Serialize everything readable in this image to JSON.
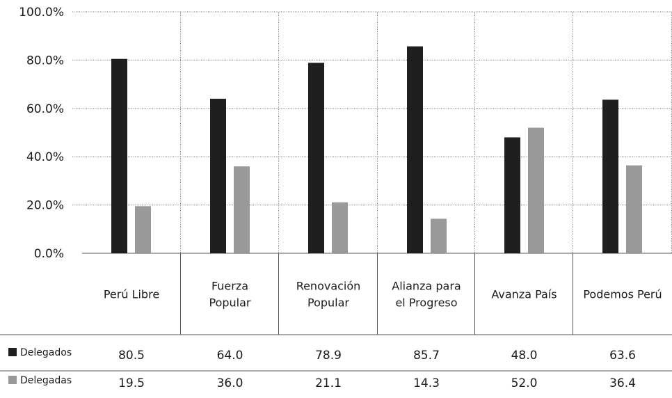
{
  "chart_data": {
    "type": "bar",
    "categories": [
      [
        "Perú Libre"
      ],
      [
        "Fuerza",
        "Popular"
      ],
      [
        "Renovación",
        "Popular"
      ],
      [
        "Alianza para",
        "el Progreso"
      ],
      [
        "Avanza País"
      ],
      [
        "Podemos Perú"
      ]
    ],
    "series": [
      {
        "name": "Delegados",
        "color": "#1f1f1f",
        "values": [
          80.5,
          64.0,
          78.9,
          85.7,
          48.0,
          63.6
        ]
      },
      {
        "name": "Delegadas",
        "color": "#999999",
        "values": [
          19.5,
          36.0,
          21.1,
          14.3,
          52.0,
          36.4
        ]
      }
    ],
    "y_ticks": [
      "0.0%",
      "20.0%",
      "40.0%",
      "60.0%",
      "80.0%",
      "100.0%"
    ],
    "ylim": [
      0,
      100
    ],
    "grid": true,
    "legend": "data-table-left"
  }
}
